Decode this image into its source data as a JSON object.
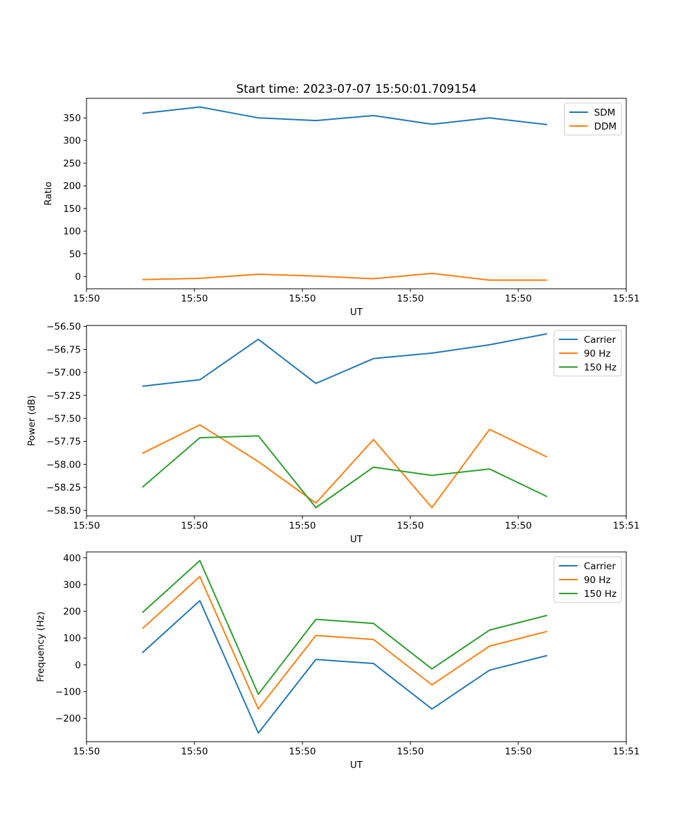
{
  "figure_title": "Start time: 2023-07-07 15:50:01.709154",
  "chart_data": [
    {
      "type": "line",
      "xlabel": "UT",
      "ylabel": "Ratio",
      "xlim": [
        0,
        60
      ],
      "ylim": [
        -27.1,
        393.1
      ],
      "x_seconds": [
        6.2,
        12.6,
        19.1,
        25.5,
        31.9,
        38.4,
        44.8,
        51.2
      ],
      "xtick_values": [
        0,
        12,
        24,
        36,
        48,
        60
      ],
      "xtick_labels": [
        "15:50",
        "15:50",
        "15:50",
        "15:50",
        "15:50",
        "15:51"
      ],
      "ytick_values": [
        0,
        50,
        100,
        150,
        200,
        250,
        300,
        350
      ],
      "ytick_labels": [
        "0",
        "50",
        "100",
        "150",
        "200",
        "250",
        "300",
        "350"
      ],
      "grid": false,
      "legend_position": "upper right",
      "series": [
        {
          "name": "SDM",
          "color": "#1f77b4",
          "values": [
            360,
            374,
            350,
            344,
            355,
            336,
            350,
            335
          ]
        },
        {
          "name": "DDM",
          "color": "#ff7f0e",
          "values": [
            -7,
            -4,
            5,
            1,
            -5,
            7,
            -8,
            -8
          ]
        }
      ]
    },
    {
      "type": "line",
      "xlabel": "UT",
      "ylabel": "Power (dB)",
      "xlim": [
        0,
        60
      ],
      "ylim": [
        -58.56,
        -56.49
      ],
      "x_seconds": [
        6.2,
        12.6,
        19.1,
        25.5,
        31.9,
        38.4,
        44.8,
        51.2
      ],
      "xtick_values": [
        0,
        12,
        24,
        36,
        48,
        60
      ],
      "xtick_labels": [
        "15:50",
        "15:50",
        "15:50",
        "15:50",
        "15:50",
        "15:51"
      ],
      "ytick_values": [
        -58.5,
        -58.25,
        -58.0,
        -57.75,
        -57.5,
        -57.25,
        -57.0,
        -56.75,
        -56.5
      ],
      "ytick_labels": [
        "−58.50",
        "−58.25",
        "−58.00",
        "−57.75",
        "−57.50",
        "−57.25",
        "−57.00",
        "−56.75",
        "−56.50"
      ],
      "grid": false,
      "legend_position": "upper right",
      "series": [
        {
          "name": "Carrier",
          "color": "#1f77b4",
          "values": [
            -57.15,
            -57.08,
            -56.64,
            -57.12,
            -56.85,
            -56.79,
            -56.7,
            -56.58
          ]
        },
        {
          "name": "90 Hz",
          "color": "#ff7f0e",
          "values": [
            -57.88,
            -57.57,
            -57.97,
            -58.42,
            -57.73,
            -58.47,
            -57.62,
            -57.92
          ]
        },
        {
          "name": "150 Hz",
          "color": "#2ca02c",
          "values": [
            -58.25,
            -57.71,
            -57.69,
            -58.47,
            -58.03,
            -58.12,
            -58.05,
            -58.35
          ]
        }
      ]
    },
    {
      "type": "line",
      "xlabel": "UT",
      "ylabel": "Frequency (Hz)",
      "xlim": [
        0,
        60
      ],
      "ylim": [
        -287.25,
        422.25
      ],
      "x_seconds": [
        6.2,
        12.6,
        19.1,
        25.5,
        31.9,
        38.4,
        44.8,
        51.2
      ],
      "xtick_values": [
        0,
        12,
        24,
        36,
        48,
        60
      ],
      "xtick_labels": [
        "15:50",
        "15:50",
        "15:50",
        "15:50",
        "15:50",
        "15:51"
      ],
      "ytick_values": [
        -200,
        -100,
        0,
        100,
        200,
        300,
        400
      ],
      "ytick_labels": [
        "−200",
        "−100",
        "0",
        "100",
        "200",
        "300",
        "400"
      ],
      "grid": false,
      "legend_position": "upper right",
      "series": [
        {
          "name": "Carrier",
          "color": "#1f77b4",
          "values": [
            45,
            240,
            -255,
            20,
            5,
            -165,
            -20,
            35
          ]
        },
        {
          "name": "90 Hz",
          "color": "#ff7f0e",
          "values": [
            135,
            330,
            -165,
            110,
            95,
            -75,
            70,
            125
          ]
        },
        {
          "name": "150 Hz",
          "color": "#2ca02c",
          "values": [
            195,
            390,
            -110,
            170,
            155,
            -15,
            130,
            185
          ]
        }
      ]
    }
  ]
}
